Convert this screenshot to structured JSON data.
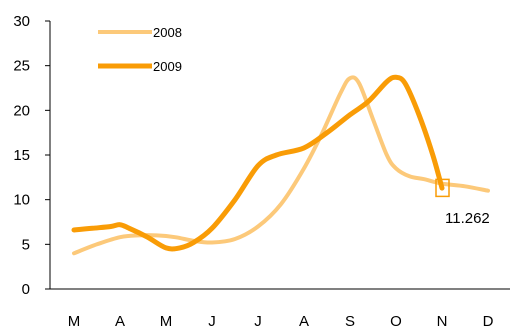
{
  "chart_data": {
    "type": "line",
    "title": "",
    "xlabel": "",
    "ylabel": "",
    "ylim": [
      0,
      30
    ],
    "yticks": [
      0,
      5,
      10,
      15,
      20,
      25,
      30
    ],
    "categories": [
      "M",
      "A",
      "M",
      "J",
      "J",
      "A",
      "S",
      "O",
      "N",
      "D"
    ],
    "grid": false,
    "legend_position": "top-left",
    "colors": {
      "2008": "#fcc97a",
      "2009": "#f99c06",
      "highlight": "#f99c06",
      "axis": "#000000"
    },
    "series": [
      {
        "name": "2008",
        "x": [
          0.0,
          0.5,
          1.0,
          1.4,
          1.8,
          2.2,
          2.6,
          3.0,
          3.5,
          4.0,
          4.5,
          5.0,
          5.4,
          5.8,
          6.0,
          6.2,
          6.5,
          6.8,
          7.0,
          7.3,
          7.6,
          8.0,
          8.5,
          9.0
        ],
        "values": [
          4.0,
          5.0,
          5.8,
          6.0,
          6.0,
          5.8,
          5.4,
          5.2,
          5.6,
          7.0,
          9.5,
          13.5,
          17.5,
          22.0,
          23.6,
          23.0,
          19.0,
          15.0,
          13.5,
          12.6,
          12.3,
          11.8,
          11.5,
          11.0
        ]
      },
      {
        "name": "2009",
        "x": [
          0.0,
          0.4,
          0.8,
          1.0,
          1.2,
          1.6,
          2.0,
          2.3,
          2.6,
          3.0,
          3.5,
          4.0,
          4.4,
          5.0,
          5.5,
          6.0,
          6.4,
          6.8,
          7.0,
          7.2,
          7.5,
          7.8,
          8.0
        ],
        "values": [
          6.6,
          6.8,
          7.0,
          7.2,
          6.8,
          5.8,
          4.6,
          4.6,
          5.2,
          6.8,
          10.0,
          13.8,
          15.0,
          15.8,
          17.5,
          19.5,
          21.0,
          23.2,
          23.7,
          23.0,
          19.5,
          15.0,
          11.3
        ]
      }
    ],
    "annotations": [
      {
        "text": "11.262",
        "x": 8.0,
        "y": 11.262
      }
    ]
  }
}
